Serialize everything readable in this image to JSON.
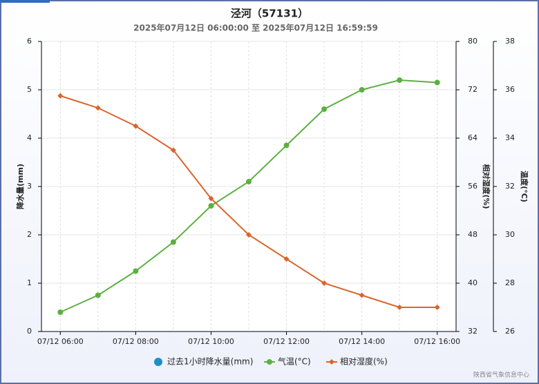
{
  "chart_data": {
    "type": "line",
    "title": "泾河（57131）",
    "subtitle": "2025年07月12日 06:00:00 至 2025年07月12日 16:59:59",
    "source": "陕西省气象信息中心",
    "categories": [
      "07/12 06:00",
      null,
      "07/12 08:00",
      null,
      "07/12 10:00",
      null,
      "07/12 12:00",
      null,
      "07/12 14:00",
      null,
      "07/12 16:00"
    ],
    "y_label": "降水量(mm)",
    "ylim": [
      0,
      6
    ],
    "yticks": [
      0,
      1,
      2,
      3,
      4,
      5,
      6
    ],
    "y2_label": "相对湿度(%)",
    "y2lim": [
      32,
      80
    ],
    "y2ticks": [
      32,
      40,
      48,
      56,
      64,
      72,
      80
    ],
    "y3_label": "温度(°C)",
    "y3lim": [
      26,
      38
    ],
    "y3ticks": [
      26,
      28,
      30,
      32,
      34,
      36,
      38
    ],
    "grid": true,
    "series": [
      {
        "name": "过去1小时降水量(mm)",
        "color": "#1f8fc8",
        "type": "bar",
        "values": [
          0,
          0,
          0,
          0,
          0,
          0,
          0,
          0,
          0,
          0,
          0
        ]
      },
      {
        "name": "气温(°C)",
        "color": "#5cb040",
        "axis": "y3",
        "marker": "circle",
        "values": [
          26.8,
          27.5,
          28.5,
          29.7,
          31.2,
          32.2,
          33.7,
          35.2,
          36.0,
          36.4,
          36.3
        ]
      },
      {
        "name": "相对湿度(%)",
        "color": "#d9652b",
        "axis": "y2",
        "marker": "diamond",
        "values": [
          71,
          69,
          66,
          62,
          54,
          48,
          44,
          40,
          38,
          36,
          36
        ]
      }
    ]
  }
}
